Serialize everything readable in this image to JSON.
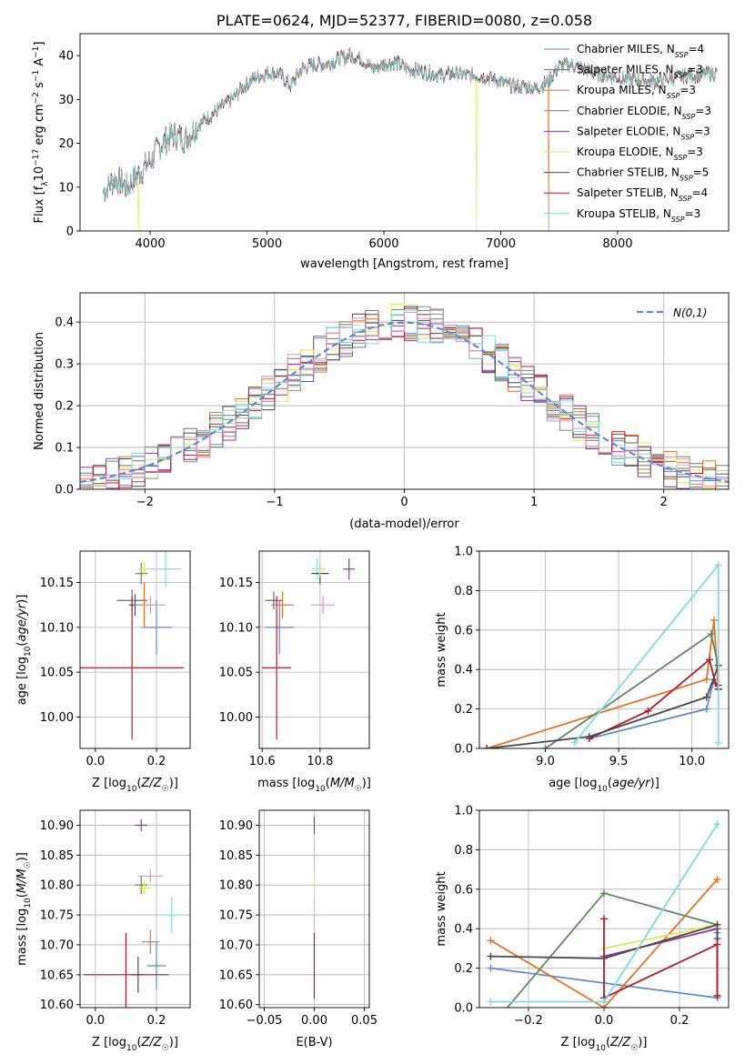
{
  "figure_title": "PLATE=0624, MJD=52377, FIBERID=0080, z=0.058",
  "colors": {
    "Chabrier MILES": "#5b8bd6",
    "Salpeter MILES": "#6c6c6c",
    "Kroupa MILES": "#e0752a",
    "Chabrier ELODIE": "#5e8a5f",
    "Salpeter ELODIE": "#9b30b0",
    "Kroupa ELODIE": "#d9ec55",
    "Chabrier STELIB": "#4a4a4a",
    "Salpeter STELIB": "#b21e2a",
    "Kroupa STELIB": "#7fdbe0",
    "pinkish": "#e98bb5",
    "normal_curve": "#5b8bd6"
  },
  "chart_data": [
    {
      "id": "spectrum",
      "type": "line",
      "title": "PLATE=0624, MJD=52377, FIBERID=0080, z=0.058",
      "xlabel": "wavelength [Angstrom, rest frame]",
      "ylabel": "Flux [f_λ 10^-17 erg cm^-2 s^-1 A^-1]",
      "xlim": [
        3400,
        8950
      ],
      "ylim": [
        0,
        45
      ],
      "xticks": [
        4000,
        5000,
        6000,
        7000,
        8000
      ],
      "yticks": [
        0,
        10,
        20,
        30,
        40
      ],
      "grid": false,
      "legend": "top-right",
      "continuum": {
        "x": [
          3600,
          3700,
          3800,
          3900,
          4000,
          4100,
          4200,
          4300,
          4400,
          4500,
          4600,
          4700,
          4800,
          4900,
          5000,
          5100,
          5200,
          5300,
          5400,
          5500,
          5600,
          5700,
          5800,
          5900,
          6000,
          6100,
          6200,
          6300,
          6400,
          6500,
          6600,
          6700,
          6800,
          6900,
          7000,
          7100,
          7200,
          7300,
          7400,
          7500,
          7600,
          7700,
          7800,
          7900,
          8000,
          8100,
          8200,
          8300,
          8400,
          8500,
          8600,
          8700,
          8800,
          8850
        ],
        "y": [
          9,
          12,
          10,
          13,
          16,
          20,
          22,
          21,
          24,
          26,
          28,
          30,
          33,
          35,
          36,
          36,
          33,
          37,
          38,
          38,
          39,
          40,
          39.5,
          37,
          38,
          38.5,
          37,
          36.5,
          36,
          35.5,
          36,
          35.5,
          35.5,
          35,
          34,
          33,
          33,
          32.5,
          34,
          37.5,
          38,
          37,
          36,
          35.5,
          35,
          34.5,
          34.5,
          34,
          34.5,
          35,
          35.5,
          35.5,
          36,
          36
        ]
      },
      "series": [
        {
          "name": "Chabrier MILES, N_SSP=4"
        },
        {
          "name": "Salpeter MILES, N_SSP=3"
        },
        {
          "name": "Kroupa MILES, N_SSP=3"
        },
        {
          "name": "Chabrier ELODIE, N_SSP=3"
        },
        {
          "name": "Salpeter ELODIE, N_SSP=3"
        },
        {
          "name": "Kroupa ELODIE, N_SSP=3"
        },
        {
          "name": "Chabrier STELIB, N_SSP=5"
        },
        {
          "name": "Salpeter STELIB, N_SSP=4"
        },
        {
          "name": "Kroupa STELIB, N_SSP=3"
        }
      ]
    },
    {
      "id": "residuals",
      "type": "line",
      "xlabel": "(data-model)/error",
      "ylabel": "Normed distribution",
      "xlim": [
        -2.5,
        2.5
      ],
      "ylim": [
        0,
        0.47
      ],
      "xticks": [
        -2,
        -1,
        0,
        1,
        2
      ],
      "yticks": [
        0.0,
        0.1,
        0.2,
        0.3,
        0.4
      ],
      "grid": true,
      "legend": "top-right",
      "normal_label": "N(0,1)",
      "bin_width": 0.1
    },
    {
      "id": "age_vs_Z",
      "type": "scatter",
      "xlabel": "Z [log10(Z/Z☉)]",
      "ylabel": "age  [log10(age/yr)]",
      "xlim": [
        -0.05,
        0.31
      ],
      "ylim": [
        9.965,
        10.185
      ],
      "xticks": [
        0.0,
        0.2
      ],
      "yticks": [
        10.0,
        10.05,
        10.1,
        10.15
      ],
      "grid": true,
      "points": [
        {
          "x": 0.12,
          "y": 10.13,
          "xerr": 0.05,
          "yerr": 0.012,
          "c": "Salpeter MILES"
        },
        {
          "x": 0.16,
          "y": 10.125,
          "xerr": 0.03,
          "yerr": 0.025,
          "c": "Kroupa MILES"
        },
        {
          "x": 0.2,
          "y": 10.1,
          "xerr": 0.05,
          "yerr": 0.03,
          "c": "Chabrier MILES"
        },
        {
          "x": 0.13,
          "y": 10.125,
          "xerr": 0.02,
          "yerr": 0.012,
          "c": "Chabrier STELIB"
        },
        {
          "x": 0.15,
          "y": 10.16,
          "xerr": 0.02,
          "yerr": 0.012,
          "c": "Chabrier ELODIE"
        },
        {
          "x": 0.16,
          "y": 10.165,
          "xerr": 0.02,
          "yerr": 0.008,
          "c": "Kroupa ELODIE"
        },
        {
          "x": 0.18,
          "y": 10.125,
          "xerr": 0.05,
          "yerr": 0.01,
          "c": "pinkish"
        },
        {
          "x": 0.23,
          "y": 10.165,
          "xerr": 0.05,
          "yerr": 0.02,
          "c": "Kroupa STELIB"
        },
        {
          "x": 0.12,
          "y": 10.055,
          "xerr": 0.17,
          "yerr": 0.08,
          "c": "Salpeter STELIB"
        }
      ]
    },
    {
      "id": "age_vs_mass",
      "type": "scatter",
      "xlabel": "mass [log10(M/M☉)]",
      "ylabel": "",
      "xlim": [
        10.59,
        10.97
      ],
      "ylim": [
        9.965,
        10.185
      ],
      "xticks": [
        10.6,
        10.8
      ],
      "yticks": [
        10.0,
        10.05,
        10.1,
        10.15
      ],
      "grid": true,
      "points": [
        {
          "x": 10.66,
          "y": 10.1,
          "xerr": 0.05,
          "yerr": 0.03,
          "c": "Chabrier MILES"
        },
        {
          "x": 10.64,
          "y": 10.13,
          "xerr": 0.03,
          "yerr": 0.01,
          "c": "Salpeter MILES"
        },
        {
          "x": 10.67,
          "y": 10.125,
          "xerr": 0.04,
          "yerr": 0.015,
          "c": "Kroupa MILES"
        },
        {
          "x": 10.79,
          "y": 10.165,
          "xerr": 0.02,
          "yerr": 0.012,
          "c": "Kroupa STELIB"
        },
        {
          "x": 10.8,
          "y": 10.16,
          "xerr": 0.03,
          "yerr": 0.012,
          "c": "Chabrier STELIB"
        },
        {
          "x": 10.8,
          "y": 10.165,
          "xerr": 0.02,
          "yerr": 0.008,
          "c": "Kroupa ELODIE"
        },
        {
          "x": 10.81,
          "y": 10.125,
          "xerr": 0.04,
          "yerr": 0.01,
          "c": "pinkish"
        },
        {
          "x": 10.9,
          "y": 10.165,
          "xerr": 0.02,
          "yerr": 0.012,
          "c": "Salpeter ELODIE"
        },
        {
          "x": 10.65,
          "y": 10.055,
          "xerr": 0.05,
          "yerr": 0.08,
          "c": "Salpeter STELIB"
        }
      ]
    },
    {
      "id": "weight_vs_age",
      "type": "line",
      "xlabel": "age  [log10(age/yr)]",
      "ylabel": "mass weight",
      "xlim": [
        8.55,
        10.25
      ],
      "ylim": [
        0.0,
        1.0
      ],
      "xticks": [
        9.0,
        9.5,
        10.0
      ],
      "yticks": [
        0.0,
        0.2,
        0.4,
        0.6,
        0.8,
        1.0
      ],
      "grid": true,
      "series": [
        {
          "c": "Chabrier MILES",
          "x": [
            9.3,
            10.1,
            10.15,
            10.18
          ],
          "y": [
            0.05,
            0.2,
            0.35,
            0.3
          ]
        },
        {
          "c": "Kroupa MILES",
          "x": [
            8.6,
            10.1,
            10.15,
            10.18
          ],
          "y": [
            0.0,
            0.35,
            0.65,
            0.3
          ]
        },
        {
          "c": "Chabrier ELODIE",
          "x": [
            9.0,
            10.13,
            10.18
          ],
          "y": [
            0.0,
            0.58,
            0.42
          ]
        },
        {
          "c": "Salpeter STELIB",
          "x": [
            9.3,
            9.7,
            10.12,
            10.16,
            10.18
          ],
          "y": [
            0.05,
            0.19,
            0.45,
            0.33,
            0.32
          ]
        },
        {
          "c": "Chabrier STELIB",
          "x": [
            8.6,
            9.3,
            10.1,
            10.18,
            10.18
          ],
          "y": [
            0.0,
            0.06,
            0.26,
            0.42,
            0.3
          ]
        },
        {
          "c": "Kroupa STELIB",
          "x": [
            9.2,
            10.18,
            10.18
          ],
          "y": [
            0.03,
            0.93,
            0.03
          ]
        }
      ]
    },
    {
      "id": "mass_vs_Z",
      "type": "scatter",
      "xlabel": "Z [log10(Z/Z☉)]",
      "ylabel": "mass [log10(M/M☉)]",
      "xlim": [
        -0.05,
        0.31
      ],
      "ylim": [
        10.595,
        10.925
      ],
      "xticks": [
        0.0,
        0.2
      ],
      "yticks": [
        10.6,
        10.65,
        10.7,
        10.75,
        10.8,
        10.85,
        10.9
      ],
      "grid": true,
      "points": [
        {
          "x": 0.15,
          "y": 10.9,
          "xerr": 0.02,
          "yerr": 0.01,
          "c": "Salpeter ELODIE"
        },
        {
          "x": 0.15,
          "y": 10.8,
          "xerr": 0.02,
          "yerr": 0.015,
          "c": "Chabrier ELODIE"
        },
        {
          "x": 0.16,
          "y": 10.795,
          "xerr": 0.02,
          "yerr": 0.01,
          "c": "Kroupa ELODIE"
        },
        {
          "x": 0.18,
          "y": 10.815,
          "xerr": 0.04,
          "yerr": 0.01,
          "c": "pinkish"
        },
        {
          "x": 0.25,
          "y": 10.75,
          "xerr": 0.04,
          "yerr": 0.03,
          "c": "Kroupa STELIB"
        },
        {
          "x": 0.18,
          "y": 10.705,
          "xerr": 0.03,
          "yerr": 0.02,
          "c": "Kroupa MILES"
        },
        {
          "x": 0.2,
          "y": 10.665,
          "xerr": 0.03,
          "yerr": 0.04,
          "c": "Chabrier MILES"
        },
        {
          "x": 0.14,
          "y": 10.65,
          "xerr": 0.02,
          "yerr": 0.03,
          "c": "Chabrier STELIB"
        },
        {
          "x": 0.1,
          "y": 10.65,
          "xerr": 0.14,
          "yerr": 0.07,
          "c": "Salpeter STELIB"
        }
      ]
    },
    {
      "id": "mass_vs_ebv",
      "type": "scatter",
      "xlabel": "E(B-V)",
      "ylabel": "",
      "xlim": [
        -0.055,
        0.055
      ],
      "ylim": [
        10.595,
        10.925
      ],
      "xticks": [
        -0.05,
        0.0,
        0.05
      ],
      "yticks": [
        10.6,
        10.65,
        10.7,
        10.75,
        10.8,
        10.85,
        10.9
      ],
      "grid": true,
      "points": [
        {
          "x": 0.0,
          "y": 10.9,
          "xerr": 0,
          "yerr": 0.015,
          "c": "Salpeter ELODIE"
        },
        {
          "x": 0.0,
          "y": 10.8,
          "xerr": 0,
          "yerr": 0.02,
          "c": "Kroupa ELODIE"
        },
        {
          "x": 0.0,
          "y": 10.75,
          "xerr": 0,
          "yerr": 0.02,
          "c": "Kroupa STELIB"
        },
        {
          "x": 0.0,
          "y": 10.665,
          "xerr": 0,
          "yerr": 0.055,
          "c": "Salpeter STELIB"
        }
      ]
    },
    {
      "id": "weight_vs_Z",
      "type": "line",
      "xlabel": "Z [log10(Z/Z☉)]",
      "ylabel": "mass weight",
      "xlim": [
        -0.33,
        0.33
      ],
      "ylim": [
        0.0,
        1.0
      ],
      "xticks": [
        -0.2,
        0.0,
        0.2
      ],
      "yticks": [
        0.0,
        0.2,
        0.4,
        0.6,
        0.8,
        1.0
      ],
      "grid": true,
      "series": [
        {
          "c": "Chabrier MILES",
          "x": [
            -0.3,
            0.3,
            0.3
          ],
          "y": [
            0.2,
            0.05,
            0.38
          ]
        },
        {
          "c": "Kroupa MILES",
          "x": [
            -0.3,
            0.0,
            0.3
          ],
          "y": [
            0.34,
            0.0,
            0.65
          ]
        },
        {
          "c": "Chabrier ELODIE",
          "x": [
            -0.3,
            0.0,
            0.3
          ],
          "y": [
            -0.1,
            0.58,
            0.42
          ]
        },
        {
          "c": "Salpeter ELODIE",
          "x": [
            0.0,
            0.3,
            0.3
          ],
          "y": [
            0.26,
            0.4,
            0.35
          ]
        },
        {
          "c": "Kroupa ELODIE",
          "x": [
            0.0,
            0.3
          ],
          "y": [
            0.3,
            0.42
          ]
        },
        {
          "c": "Chabrier STELIB",
          "x": [
            -0.3,
            0.0,
            0.3,
            0.3
          ],
          "y": [
            0.26,
            0.25,
            0.42,
            0.06
          ]
        },
        {
          "c": "Salpeter STELIB",
          "x": [
            0.0,
            0.0,
            0.3,
            0.3
          ],
          "y": [
            0.45,
            0.05,
            0.32,
            0.06
          ]
        },
        {
          "c": "Kroupa STELIB",
          "x": [
            -0.3,
            0.0,
            0.3
          ],
          "y": [
            0.03,
            0.03,
            0.93
          ]
        }
      ]
    }
  ]
}
